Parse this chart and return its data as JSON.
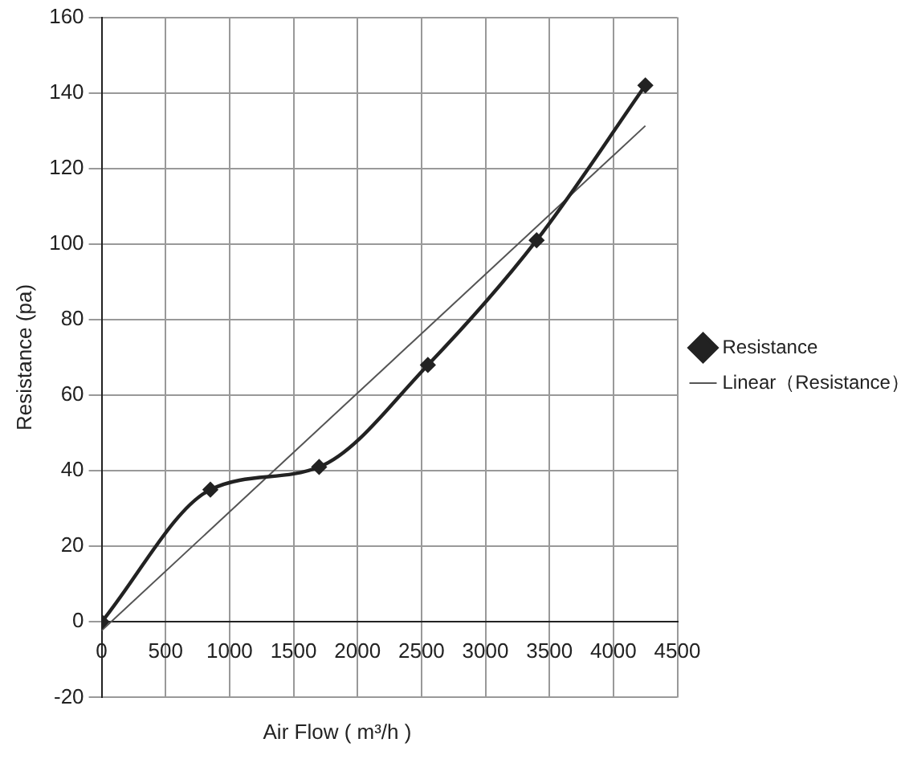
{
  "chart_data": {
    "type": "line",
    "xlabel": "Air Flow ( m³/h )",
    "ylabel": "Resistance (pa)",
    "x": [
      0,
      850,
      1700,
      2550,
      3400,
      4250
    ],
    "series": [
      {
        "name": "Resistance",
        "color": "#222222",
        "values": [
          0,
          35,
          41,
          68,
          101,
          142
        ],
        "marker": "diamond"
      },
      {
        "name": "Linear（Resistance）",
        "color": "#555555",
        "x": [
          0,
          4250
        ],
        "values": [
          -2.3,
          131.3
        ],
        "marker": "none"
      }
    ],
    "xlim": [
      0,
      4500
    ],
    "xticks": [
      0,
      500,
      1000,
      1500,
      2000,
      2500,
      3000,
      3500,
      4000,
      4500
    ],
    "ylim": [
      -20,
      160
    ],
    "yticks": [
      -20,
      0,
      20,
      40,
      60,
      80,
      100,
      120,
      140,
      160
    ],
    "grid": true,
    "legend": "right"
  }
}
